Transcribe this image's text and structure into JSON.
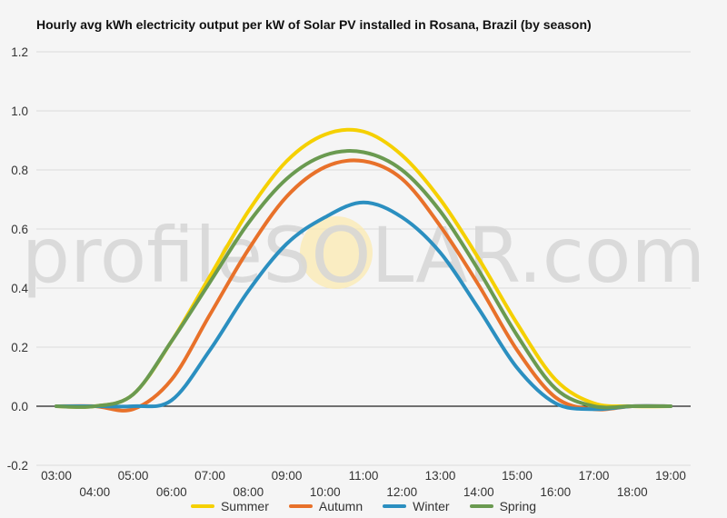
{
  "chart_data": {
    "type": "line",
    "title": "Hourly avg kWh electricity output per kW of Solar PV installed in Rosana, Brazil (by season)",
    "xlabel": "",
    "ylabel": "",
    "watermark": "profileSOLAR.com",
    "x": [
      "03:00",
      "04:00",
      "05:00",
      "06:00",
      "07:00",
      "08:00",
      "09:00",
      "10:00",
      "11:00",
      "12:00",
      "13:00",
      "14:00",
      "15:00",
      "16:00",
      "17:00",
      "18:00",
      "19:00"
    ],
    "ylim": [
      -0.2,
      1.2
    ],
    "yticks": [
      -0.2,
      0.0,
      0.2,
      0.4,
      0.6,
      0.8,
      1.0,
      1.2
    ],
    "ytick_labels": [
      "-0.2",
      "0.0",
      "0.2",
      "0.4",
      "0.6",
      "0.8",
      "1.0",
      "1.2"
    ],
    "grid": true,
    "legend_position": "bottom",
    "series": [
      {
        "name": "Summer",
        "color": "#f5d000",
        "values": [
          0.0,
          0.0,
          0.04,
          0.22,
          0.44,
          0.66,
          0.83,
          0.92,
          0.93,
          0.85,
          0.7,
          0.5,
          0.28,
          0.09,
          0.01,
          0.0,
          0.0
        ]
      },
      {
        "name": "Autumn",
        "color": "#e8712a",
        "values": [
          0.0,
          0.0,
          -0.01,
          0.09,
          0.31,
          0.53,
          0.71,
          0.81,
          0.83,
          0.77,
          0.61,
          0.41,
          0.19,
          0.03,
          -0.01,
          0.0,
          0.0
        ]
      },
      {
        "name": "Winter",
        "color": "#2b8fc0",
        "values": [
          0.0,
          0.0,
          0.0,
          0.02,
          0.19,
          0.39,
          0.55,
          0.64,
          0.69,
          0.64,
          0.52,
          0.33,
          0.13,
          0.01,
          -0.01,
          0.0,
          0.0
        ]
      },
      {
        "name": "Spring",
        "color": "#6a9a50",
        "values": [
          0.0,
          0.0,
          0.04,
          0.22,
          0.42,
          0.62,
          0.77,
          0.85,
          0.86,
          0.8,
          0.66,
          0.46,
          0.24,
          0.06,
          0.0,
          0.0,
          0.0
        ]
      }
    ]
  }
}
